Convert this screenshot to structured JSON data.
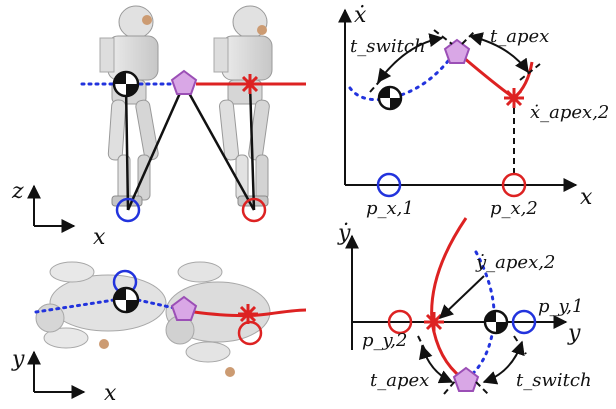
{
  "colors": {
    "left_foot": "#2233dd",
    "right_foot": "#dd2222",
    "transition": "#b56acb",
    "com_fill": "#111111"
  },
  "side_view": {
    "axis_vertical": "z",
    "axis_horizontal": "x"
  },
  "top_view": {
    "axis_vertical": "y",
    "axis_horizontal": "x"
  },
  "phase_x": {
    "axis_vertical": "ẋ",
    "axis_horizontal": "x",
    "t_switch": "t_switch",
    "t_apex": "t_apex",
    "apex_velocity": "ẋ_apex,2",
    "p1": "p_x,1",
    "p2": "p_x,2"
  },
  "phase_y": {
    "axis_vertical": "ẏ",
    "axis_horizontal": "y",
    "t_switch": "t_switch",
    "t_apex": "t_apex",
    "apex_velocity": "ẏ_apex,2",
    "p1": "p_y,1",
    "p2": "p_y,2"
  }
}
